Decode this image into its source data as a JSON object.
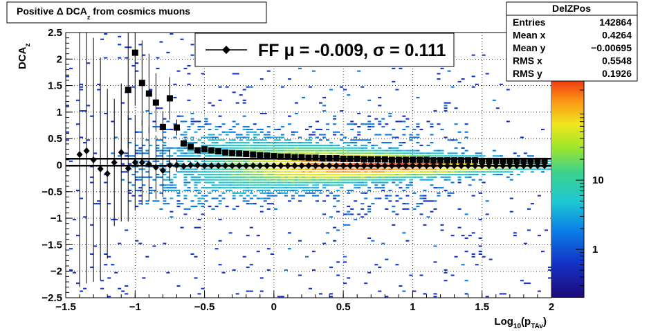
{
  "chart_data": {
    "type": "heatmap",
    "title_parts": {
      "pre": "Positive Δ DCA",
      "sub": "z",
      "post": " from cosmics muons"
    },
    "xlabel_parts": {
      "pre": "Log",
      "sub1": "10",
      "mid": "(p",
      "sub2": "TAv",
      "post": ")"
    },
    "ylabel_parts": {
      "pre": "DCA",
      "sub": "z"
    },
    "xlim": [
      -1.5,
      2.0
    ],
    "ylim": [
      -2.5,
      2.5
    ],
    "x_ticks": [
      "−1.5",
      "−1",
      "−0.5",
      "0",
      "0.5",
      "1",
      "1.5",
      "2"
    ],
    "x_tick_values": [
      -1.5,
      -1.0,
      -0.5,
      0.0,
      0.5,
      1.0,
      1.5,
      2.0
    ],
    "y_ticks": [
      "−2.5",
      "−2",
      "−1.5",
      "−1",
      "−0.5",
      "0",
      "0.5",
      "1",
      "1.5",
      "2",
      "2.5"
    ],
    "y_tick_values": [
      -2.5,
      -2.0,
      -1.5,
      -1.0,
      -0.5,
      0.0,
      0.5,
      1.0,
      1.5,
      2.0,
      2.5
    ],
    "grid": true,
    "colorbar": {
      "scale": "log",
      "ticks": [
        "1",
        "10"
      ],
      "tick_values": [
        1,
        10
      ],
      "range": [
        0.2,
        400
      ]
    },
    "stats_box": {
      "title": "DelZPos",
      "rows": [
        {
          "label": "Entries",
          "value": "142864"
        },
        {
          "label": "Mean x",
          "value": "0.4264"
        },
        {
          "label": "Mean y",
          "value": "−0.00695"
        },
        {
          "label": "RMS x",
          "value": "0.5548"
        },
        {
          "label": "RMS y",
          "value": "0.1926"
        }
      ]
    },
    "legend": {
      "label": "FF μ = -0.009, σ =   0.111",
      "placement": "top-center"
    },
    "series": [
      {
        "marker": "square",
        "x": [
          -1.05,
          -1.0,
          -0.95,
          -0.9,
          -0.85,
          -0.8,
          -0.75,
          -0.7,
          -0.65,
          -0.6,
          -0.55,
          -0.5,
          -0.45,
          -0.4,
          -0.35,
          -0.3,
          -0.25,
          -0.2,
          -0.15,
          -0.1,
          -0.05,
          0.0,
          0.05,
          0.1,
          0.15,
          0.2,
          0.25,
          0.3,
          0.35,
          0.4,
          0.45,
          0.5,
          0.55,
          0.6,
          0.65,
          0.7,
          0.75,
          0.8,
          0.85,
          0.9,
          0.95,
          1.0,
          1.05,
          1.1,
          1.15,
          1.2,
          1.25,
          1.3,
          1.35,
          1.4,
          1.45,
          1.5,
          1.55,
          1.6,
          1.65,
          1.7,
          1.75,
          1.8,
          1.85,
          1.9,
          1.95
        ],
        "y": [
          1.42,
          2.12,
          1.55,
          1.35,
          1.18,
          0.72,
          1.26,
          0.71,
          0.41,
          0.35,
          0.28,
          0.3,
          0.28,
          0.26,
          0.24,
          0.23,
          0.22,
          0.21,
          0.2,
          0.19,
          0.18,
          0.17,
          0.16,
          0.16,
          0.15,
          0.15,
          0.14,
          0.14,
          0.13,
          0.13,
          0.13,
          0.12,
          0.12,
          0.12,
          0.11,
          0.11,
          0.11,
          0.11,
          0.1,
          0.1,
          0.1,
          0.1,
          0.1,
          0.1,
          0.09,
          0.09,
          0.09,
          0.09,
          0.09,
          0.09,
          0.09,
          0.08,
          0.08,
          0.08,
          0.08,
          0.08,
          0.08,
          0.08,
          0.08,
          0.08,
          0.08
        ],
        "err": [
          1.1,
          1.0,
          0.8,
          0.75,
          0.55,
          0.3,
          0.4,
          0.15,
          0.06,
          0.05,
          0.04,
          0.04,
          0.03,
          0.03,
          0.02,
          0.02,
          0.02,
          0.02,
          0.02,
          0.01,
          0.01,
          0.01,
          0.01,
          0.01,
          0.01,
          0.01,
          0.01,
          0.01,
          0.01,
          0.01,
          0.01,
          0.01,
          0.01,
          0.01,
          0.01,
          0.01,
          0.01,
          0.01,
          0.01,
          0.01,
          0.01,
          0.01,
          0.01,
          0.01,
          0.01,
          0.01,
          0.01,
          0.01,
          0.01,
          0.01,
          0.01,
          0.01,
          0.01,
          0.01,
          0.01,
          0.01,
          0.01,
          0.01,
          0.01,
          0.01,
          0.01
        ]
      },
      {
        "marker": "diamond",
        "x": [
          -1.4,
          -1.35,
          -1.3,
          -1.25,
          -1.2,
          -1.15,
          -1.1,
          -1.05,
          -1.0,
          -0.95,
          -0.9,
          -0.85,
          -0.8,
          -0.75,
          -0.7,
          -0.65,
          -0.6,
          -0.55,
          -0.5,
          -0.45,
          -0.4,
          -0.35,
          -0.3,
          -0.25,
          -0.2,
          -0.15,
          -0.1,
          -0.05,
          0.0,
          0.05,
          0.1,
          0.15,
          0.2,
          0.25,
          0.3,
          0.35,
          0.4,
          0.45,
          0.5,
          0.55,
          0.6,
          0.65,
          0.7,
          0.75,
          0.8,
          0.85,
          0.9,
          0.95,
          1.0,
          1.05,
          1.1,
          1.15,
          1.2,
          1.25,
          1.3,
          1.35,
          1.4,
          1.45,
          1.5,
          1.55,
          1.6,
          1.65,
          1.7,
          1.75,
          1.8,
          1.85,
          1.9,
          1.95
        ],
        "y": [
          0.2,
          0.27,
          0.1,
          -0.07,
          -0.16,
          0.05,
          0.24,
          -0.06,
          0.05,
          0.05,
          0.02,
          -0.04,
          -0.1,
          0.0,
          0.0,
          -0.02,
          0.0,
          0.0,
          -0.01,
          -0.01,
          -0.01,
          -0.01,
          -0.01,
          -0.01,
          -0.01,
          -0.01,
          -0.01,
          -0.01,
          -0.01,
          -0.01,
          -0.01,
          -0.01,
          -0.01,
          -0.01,
          -0.01,
          -0.01,
          -0.01,
          -0.01,
          -0.01,
          -0.01,
          -0.01,
          -0.01,
          -0.01,
          -0.01,
          -0.01,
          -0.01,
          -0.01,
          -0.01,
          -0.01,
          -0.01,
          -0.01,
          -0.01,
          -0.01,
          -0.01,
          -0.01,
          -0.01,
          -0.01,
          -0.01,
          -0.01,
          -0.01,
          -0.01,
          -0.01,
          -0.01,
          -0.01,
          -0.01,
          -0.01,
          -0.01,
          -0.01
        ],
        "err": [
          2.5,
          2.5,
          2.3,
          2.1,
          1.6,
          1.2,
          1.3,
          1.0,
          0.9,
          0.8,
          0.7,
          0.6,
          0.5,
          0.3,
          0.12,
          0.06,
          0.04,
          0.03,
          0.02,
          0.02,
          0.02,
          0.01,
          0.01,
          0.01,
          0.01,
          0.01,
          0.01,
          0.01,
          0.01,
          0.01,
          0.01,
          0.01,
          0.01,
          0.01,
          0.01,
          0.01,
          0.01,
          0.01,
          0.01,
          0.01,
          0.01,
          0.01,
          0.01,
          0.01,
          0.01,
          0.01,
          0.01,
          0.01,
          0.01,
          0.01,
          0.01,
          0.01,
          0.01,
          0.01,
          0.01,
          0.01,
          0.01,
          0.01,
          0.01,
          0.01,
          0.01,
          0.01,
          0.01,
          0.01,
          0.01,
          0.01,
          0.01,
          0.01
        ]
      }
    ],
    "fit_lines": [
      {
        "x": [
          -1.5,
          2.0
        ],
        "y": [
          0.12,
          0.12
        ]
      },
      {
        "x": [
          -1.5,
          2.0
        ],
        "y": [
          -0.01,
          -0.01
        ]
      }
    ]
  }
}
